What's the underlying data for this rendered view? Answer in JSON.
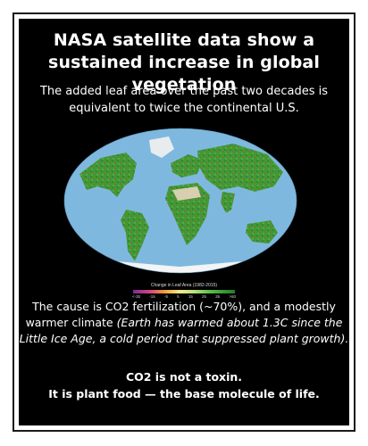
{
  "headline": "NASA satellite data show a sustained increase in global vegetation",
  "subhead": "The added leaf area over the past two decades is equivalent to twice the continental U.S.",
  "map": {
    "legend_title": "Change in Leaf Area (1982-2015)",
    "legend_ticks": [
      "<-30",
      "-15",
      "-5",
      "5",
      "15",
      "25",
      "35",
      ">50"
    ],
    "ocean_color": "#7fb8df",
    "land_color": "#3f9a36"
  },
  "cause": {
    "plain": "The cause is CO2 fertilization (~70%), and a modestly warmer climate ",
    "italic": "(Earth has warmed about 1.3C since the Little Ice Age, a cold period that suppressed plant growth)."
  },
  "closing": {
    "line1": "CO2 is not a toxin.",
    "line2": "It is plant food — the base molecule of life."
  }
}
